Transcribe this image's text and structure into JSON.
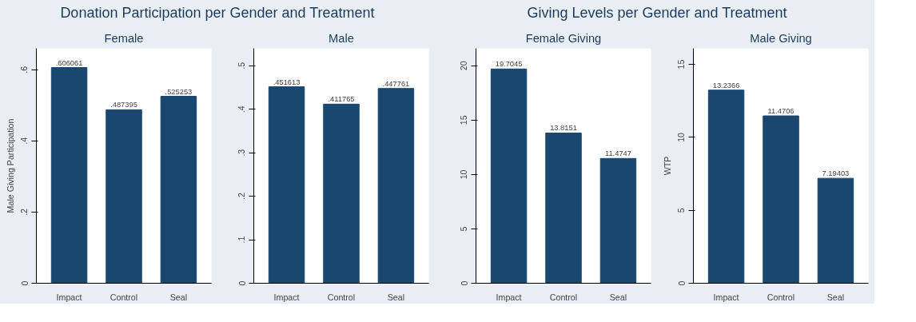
{
  "chart_data": [
    {
      "type": "bar",
      "title": "Donation Participation per Gender and Treatment",
      "subtitle": "Female",
      "ylabel": "Male Giving Participation",
      "categories": [
        "Impact",
        "Control",
        "Seal"
      ],
      "series": [
        {
          "color": "#1a476f",
          "values": [
            0.606061,
            0.487395,
            0.525253
          ]
        }
      ],
      "value_labels": [
        ".606061",
        ".487395",
        ".525253"
      ],
      "ylim": [
        0,
        0.66
      ],
      "yticks": [
        {
          "value": 0,
          "label": "0"
        },
        {
          "value": 0.2,
          "label": ".2"
        },
        {
          "value": 0.4,
          "label": ".4"
        },
        {
          "value": 0.6,
          "label": ".6"
        }
      ],
      "grid": false
    },
    {
      "type": "bar",
      "subtitle": "Male",
      "categories": [
        "Impact",
        "Control",
        "Seal"
      ],
      "series": [
        {
          "color": "#1a476f",
          "values": [
            0.451613,
            0.411765,
            0.447761
          ]
        }
      ],
      "value_labels": [
        ".451613",
        ".411765",
        ".447761"
      ],
      "ylim": [
        0,
        0.54
      ],
      "yticks": [
        {
          "value": 0,
          "label": "0"
        },
        {
          "value": 0.1,
          "label": ".1"
        },
        {
          "value": 0.2,
          "label": ".2"
        },
        {
          "value": 0.3,
          "label": ".3"
        },
        {
          "value": 0.4,
          "label": ".4"
        },
        {
          "value": 0.5,
          "label": ".5"
        }
      ],
      "grid": false
    },
    {
      "type": "bar",
      "title": "Giving Levels per Gender and Treatment",
      "subtitle": "Female Giving",
      "categories": [
        "Impact",
        "Control",
        "Seal"
      ],
      "series": [
        {
          "color": "#1a476f",
          "values": [
            19.7045,
            13.8151,
            11.4747
          ]
        }
      ],
      "data_labels": true,
      "ylim": [
        0,
        21.6
      ],
      "yticks": [
        0,
        5,
        10,
        15,
        20
      ],
      "grid": false
    },
    {
      "type": "bar",
      "subtitle": "Male Giving",
      "ylabel": "WTP",
      "categories": [
        "Impact",
        "Control",
        "Seal"
      ],
      "series": [
        {
          "color": "#1a476f",
          "values": [
            13.2366,
            11.4706,
            7.19403
          ]
        }
      ],
      "data_labels": true,
      "ylim": [
        0,
        16.1
      ],
      "yticks": [
        0,
        5,
        10,
        15
      ],
      "grid": false
    }
  ]
}
